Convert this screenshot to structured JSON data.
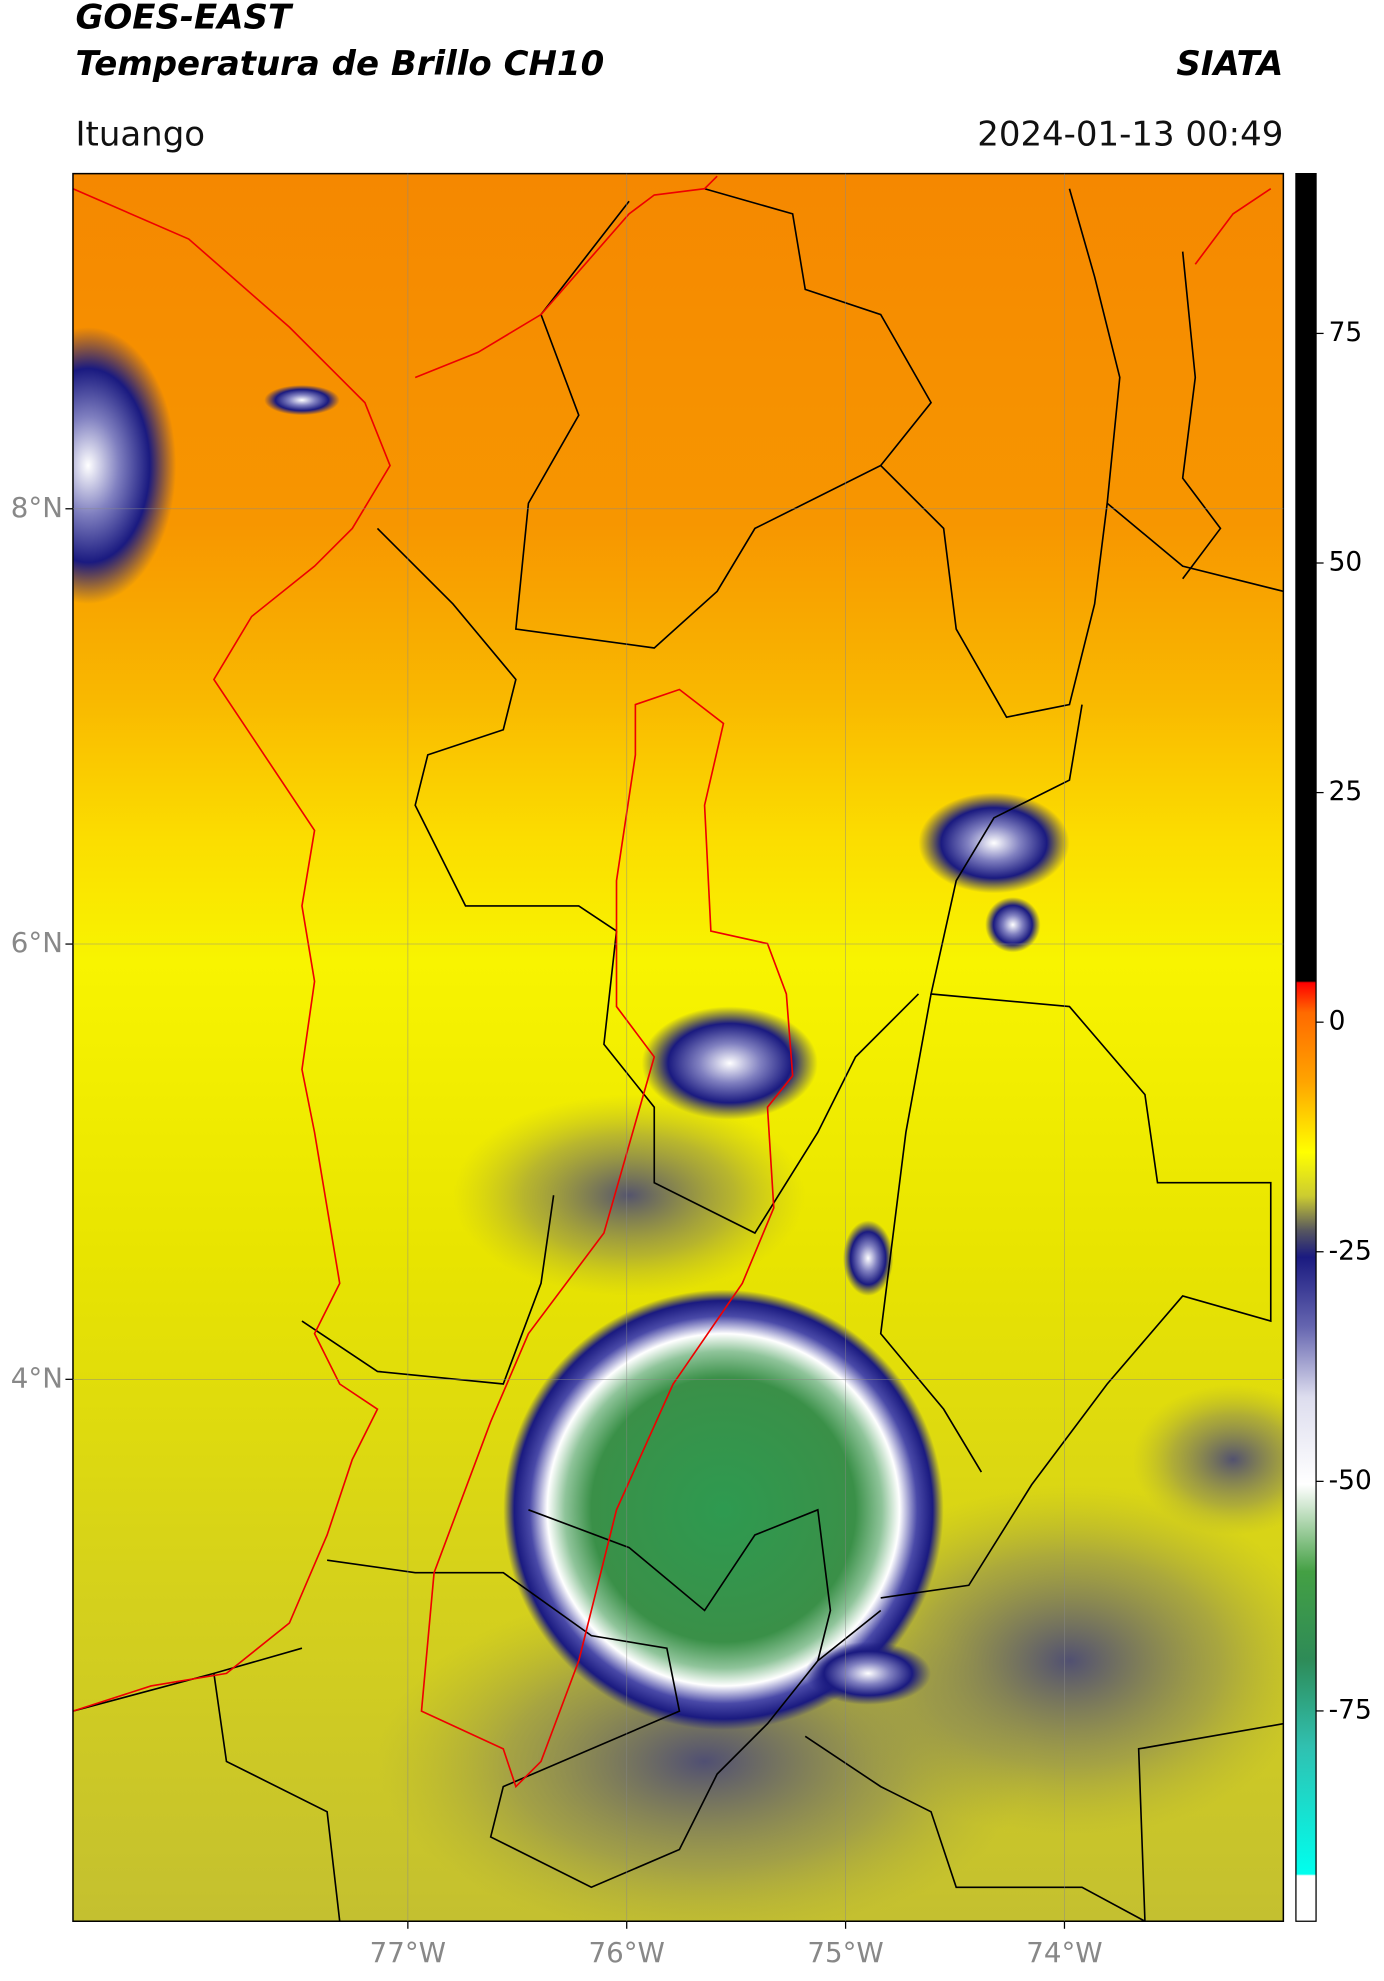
{
  "header": {
    "title": "GOES-EAST",
    "subtitle": "Temperatura de Brillo CH10",
    "organization": "SIATA",
    "location": "Ituango",
    "datetime": "2024-01-13 00:49"
  },
  "map": {
    "xlim": [
      -78.53,
      -73.0
    ],
    "ylim": [
      1.51,
      9.54
    ],
    "xticks": [
      {
        "value": -77,
        "label": "77°W"
      },
      {
        "value": -76,
        "label": "76°W"
      },
      {
        "value": -75,
        "label": "75°W"
      },
      {
        "value": -74,
        "label": "74°W"
      }
    ],
    "yticks": [
      {
        "value": 8,
        "label": "8°N"
      },
      {
        "value": 6,
        "label": "6°N"
      },
      {
        "value": 4,
        "label": "4°N"
      }
    ],
    "grid": true
  },
  "colorbar": {
    "lim": [
      -97.9,
      92.4
    ],
    "ticks": [
      75,
      50,
      25,
      0,
      -25,
      -50,
      -75
    ]
  }
}
